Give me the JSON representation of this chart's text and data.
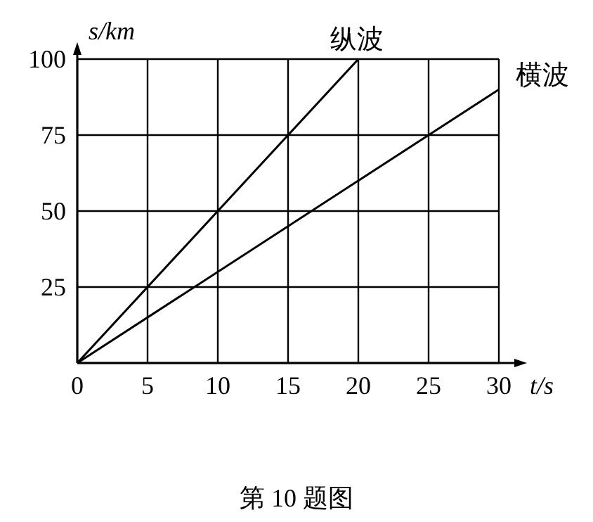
{
  "chart_data": {
    "type": "line",
    "xlabel": "t/s",
    "ylabel": "s/km",
    "annotations": [
      "第 10 题图"
    ],
    "series": [
      {
        "name": "纵波",
        "color": "#000000",
        "x": [
          0,
          20
        ],
        "values": [
          0,
          100
        ]
      },
      {
        "name": "横波",
        "color": "#000000",
        "x": [
          0,
          30
        ],
        "values": [
          0,
          90
        ]
      }
    ],
    "xlim": [
      0,
      30
    ],
    "ylim": [
      0,
      100
    ],
    "xticks": [
      0,
      5,
      10,
      15,
      20,
      25,
      30
    ],
    "yticks": [
      {
        "value": 0,
        "label": null
      },
      25,
      50,
      75,
      100
    ],
    "grid": true,
    "marker": "none",
    "line_style": "solid"
  }
}
